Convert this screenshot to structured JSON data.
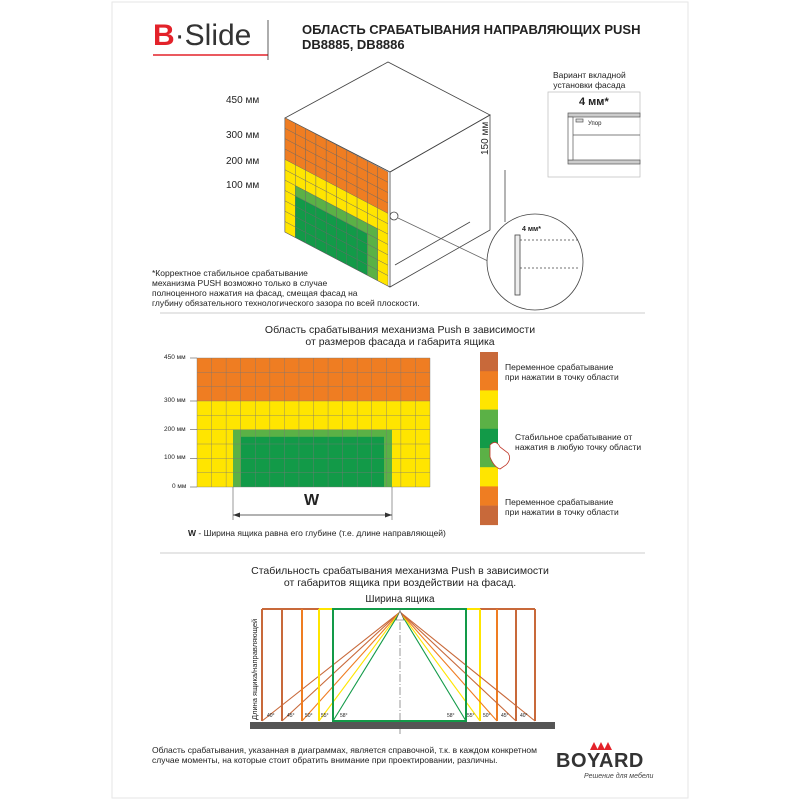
{
  "header": {
    "logo_b": "B",
    "logo_rest": "·Slide",
    "title_line1": "ОБЛАСТЬ СРАБАТЫВАНИЯ НАПРАВЛЯЮЩИХ PUSH",
    "title_line2": "DB8885, DB8886"
  },
  "cabinet": {
    "levels": [
      "450 мм",
      "300 мм",
      "200 мм",
      "100 мм"
    ],
    "height_dim": "150 мм",
    "gap_label": "4 мм*",
    "note": [
      "*Корректное стабильное срабатывание",
      "механизма PUSH возможно только в случае",
      "полноценного нажатия на фасад, смещая фасад на",
      "глубину обязательного технологического зазора по всей плоскости."
    ]
  },
  "inset": {
    "title": [
      "Вариант вкладной",
      "установки фасада"
    ],
    "gap_label": "4 мм*",
    "stop_label": "Упор"
  },
  "section2": {
    "title": [
      "Область срабатывания механизма Push в зависимости",
      "от размеров фасада и габарита ящика"
    ],
    "y_ticks": [
      "450 мм",
      "300 мм",
      "200 мм",
      "100 мм",
      "0 мм"
    ],
    "width_label": "W",
    "footnote_bold": "W",
    "footnote": " - Ширина ящика равна его глубине (т.е. длине направляющей)",
    "legend": [
      {
        "text": [
          "Переменное срабатывание",
          "при нажатии в точку области"
        ]
      },
      {
        "text": [
          "Стабильное срабатывание от",
          "нажатия в любую точку области"
        ]
      },
      {
        "text": [
          "Переменное срабатывание",
          "при нажатии в точку области"
        ]
      }
    ],
    "colors": {
      "brown": "#c8693a",
      "orange": "#ef7d22",
      "yellow": "#ffe500",
      "green": "#5bb146",
      "dark_green": "#129a48"
    }
  },
  "section3": {
    "title": [
      "Стабильность срабатывания механизма Push в зависимости",
      "от габаритов ящика при воздействии на фасад."
    ],
    "width_label": "Ширина ящика",
    "length_label": "Длина ящика/направляющей",
    "angles_left": [
      "40°",
      "45°",
      "50°",
      "55°",
      "58°"
    ],
    "angles_right": [
      "58°",
      "55°",
      "50°",
      "45°",
      "40°"
    ]
  },
  "footer": {
    "disclaimer": [
      "Область срабатывания, указанная в диаграммах, является справочной, т.к. в каждом конкретном",
      "случае моменты, на которые стоит обратить внимание при проектировании, различны."
    ],
    "brand": "BOYARD",
    "slogan": "Решение для мебели"
  }
}
